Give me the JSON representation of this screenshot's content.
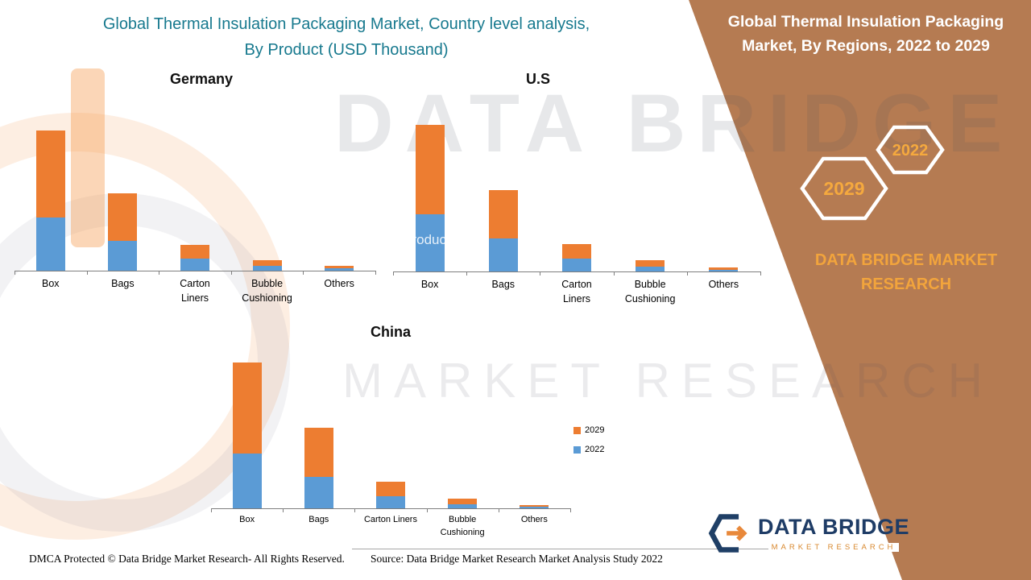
{
  "titles": {
    "left": {
      "line1": "Global Thermal Insulation Packaging Market, Country level analysis,",
      "line2": "By Product (USD Thousand)"
    },
    "region": {
      "line1": "Global Thermal Insulation Packaging",
      "line2": "Market, By Regions, 2022 to 2029"
    }
  },
  "badges": {
    "front": "2029",
    "back": "2022"
  },
  "brand": {
    "text": "DATA BRIDGE MARKET RESEARCH",
    "color": "#f2a43c"
  },
  "watermark": {
    "line1": "DATA BRIDGE",
    "line2": "MARKET RESEARCH",
    "small": "products"
  },
  "legend": {
    "position": "right-of-china-chart",
    "items": [
      {
        "label": "2029",
        "color": "#ed7d31"
      },
      {
        "label": "2022",
        "color": "#5b9bd5"
      }
    ]
  },
  "chart_data": [
    {
      "type": "bar",
      "stacked": true,
      "title": "Germany",
      "categories": [
        "Box",
        "Bags",
        "Carton Liners",
        "Bubble Cushioning",
        "Others"
      ],
      "series": [
        {
          "name": "2022",
          "color": "#5b9bd5",
          "values": [
            66,
            37,
            15,
            6,
            3
          ]
        },
        {
          "name": "2029",
          "color": "#ed7d31",
          "values": [
            108,
            59,
            17,
            7,
            3
          ]
        }
      ],
      "ylabel": "",
      "value_units": "relative (USD Thousand, axis unlabeled)",
      "grid": false
    },
    {
      "type": "bar",
      "stacked": true,
      "title": "U.S",
      "categories": [
        "Box",
        "Bags",
        "Carton Liners",
        "Bubble Cushioning",
        "Others"
      ],
      "series": [
        {
          "name": "2022",
          "color": "#5b9bd5",
          "values": [
            71,
            41,
            16,
            6,
            2
          ]
        },
        {
          "name": "2029",
          "color": "#ed7d31",
          "values": [
            111,
            60,
            18,
            8,
            3
          ]
        }
      ],
      "ylabel": "",
      "value_units": "relative (USD Thousand, axis unlabeled)",
      "grid": false
    },
    {
      "type": "bar",
      "stacked": true,
      "title": "China",
      "categories": [
        "Box",
        "Bags",
        "Carton Liners",
        "Bubble Cushioning",
        "Others"
      ],
      "series": [
        {
          "name": "2022",
          "color": "#5b9bd5",
          "values": [
            68,
            39,
            15,
            5,
            2
          ]
        },
        {
          "name": "2029",
          "color": "#ed7d31",
          "values": [
            113,
            61,
            18,
            7,
            2
          ]
        }
      ],
      "ylabel": "",
      "value_units": "relative (USD Thousand, axis unlabeled)",
      "grid": false
    }
  ],
  "logo": {
    "name": "DATA BRIDGE",
    "tagline": "MARKET RESEARCH"
  },
  "footer": {
    "dmca": "DMCA Protected © Data Bridge Market Research- All Rights Reserved.",
    "source": "Source: Data Bridge Market Research Market Analysis Study 2022"
  },
  "colors": {
    "panel_brown": "#b57b52",
    "title_teal": "#17798e",
    "bar_blue": "#5b9bd5",
    "bar_orange": "#ed7d31",
    "accent_orange": "#f2a43c"
  }
}
